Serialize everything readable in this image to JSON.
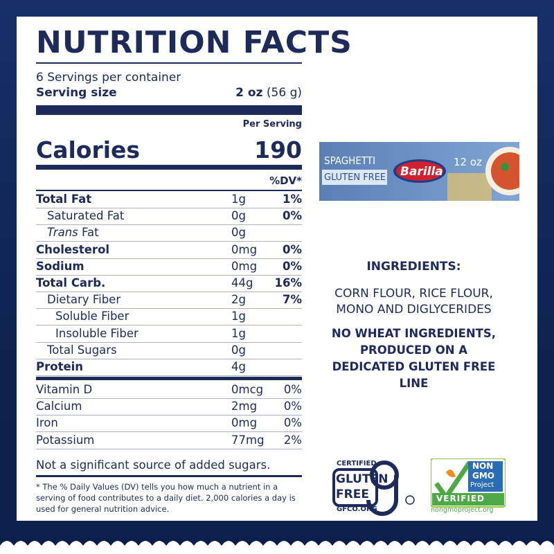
{
  "header": {
    "title": "NUTRITION FACTS"
  },
  "servings": {
    "per_container": "6 Servings per container",
    "size_label": "Serving size",
    "size_value": "2 oz",
    "size_grams": "(56 g)"
  },
  "per_serving": "Per Serving",
  "calories": {
    "label": "Calories",
    "value": "190"
  },
  "dv_header": "%DV*",
  "nutrients": [
    {
      "name": "Total Fat",
      "amount": "1g",
      "dv": "1%",
      "bold": true,
      "level": 0
    },
    {
      "name": "Saturated Fat",
      "amount": "0g",
      "dv": "0%",
      "bold": false,
      "level": 1
    },
    {
      "prefix": "Trans",
      "name": "Fat",
      "amount": "0g",
      "bold": false,
      "level": 1
    },
    {
      "name": "Cholesterol",
      "amount": "0mg",
      "dv": "0%",
      "bold": true,
      "level": 0
    },
    {
      "name": "Sodium",
      "amount": "0mg",
      "dv": "0%",
      "bold": true,
      "level": 0
    },
    {
      "name": "Total Carb.",
      "amount": "44g",
      "dv": "16%",
      "bold": true,
      "level": 0
    },
    {
      "name": "Dietary Fiber",
      "amount": "2g",
      "dv": "7%",
      "bold": false,
      "level": 1
    },
    {
      "name": "Soluble Fiber",
      "amount": "1g",
      "bold": false,
      "level": 2
    },
    {
      "name": "Insoluble Fiber",
      "amount": "1g",
      "bold": false,
      "level": 2
    },
    {
      "name": "Total Sugars",
      "amount": "0g",
      "bold": false,
      "level": 1
    },
    {
      "name": "Protein",
      "amount": "4g",
      "bold": true,
      "level": 0
    }
  ],
  "vitamins": [
    {
      "name": "Vitamin D",
      "amount": "0mcg",
      "dv": "0%"
    },
    {
      "name": "Calcium",
      "amount": "2mg",
      "dv": "0%"
    },
    {
      "name": "Iron",
      "amount": "0mg",
      "dv": "0%"
    },
    {
      "name": "Potassium",
      "amount": "77mg",
      "dv": "2%"
    }
  ],
  "note": "Not a significant source of added sugars.",
  "footnote": "* The % Daily Values (DV) tells you how much a nutrient in a serving of food contributes to a daily diet. 2,000 calories a day is used for general nutrition advice.",
  "product": {
    "name": "SPAGHETTI",
    "variant": "GLUTEN FREE",
    "brand": "Barilla",
    "size": "12 oz"
  },
  "ingredients": {
    "heading": "INGREDIENTS:",
    "text": "CORN FLOUR, RICE FLOUR, MONO AND DIGLYCERIDES",
    "statement": "NO WHEAT INGREDIENTS, PRODUCED ON A DEDICATED GLUTEN FREE LINE"
  },
  "badges": {
    "gluten_free": {
      "top": "CERTIFIED",
      "line1": "GLUTEN",
      "line2": "FREE",
      "url": "GFCO.ORG"
    },
    "non_gmo": {
      "line1": "NON",
      "line2": "GMO",
      "line3": "Project",
      "verified": "VERIFIED",
      "url": "nongmoproject.org"
    }
  }
}
